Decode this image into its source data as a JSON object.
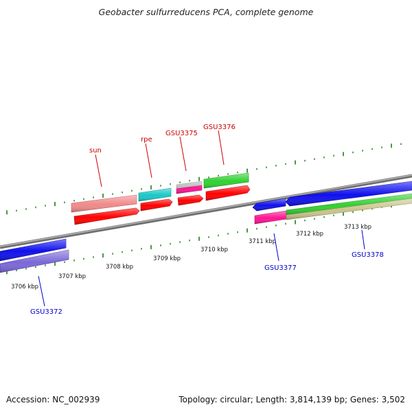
{
  "title": "Geobacter sulfurreducens PCA, complete genome",
  "footer": {
    "accession": "Accession: NC_002939",
    "topology": "Topology: circular; Length: 3,814,139 bp; Genes: 3,502"
  },
  "colors": {
    "backbone": "#8e8e8e",
    "ticks": "#1a7d1a",
    "forward_label": "#cc0000",
    "reverse_label": "#0000cc"
  },
  "scale_labels": [
    "3706 kbp",
    "3707 kbp",
    "3708 kbp",
    "3709 kbp",
    "3710 kbp",
    "3711 kbp",
    "3712 kbp",
    "3713 kbp"
  ],
  "gene_labels": {
    "sun": "sun",
    "rpe": "rpe",
    "GSU3375": "GSU3375",
    "GSU3376": "GSU3376",
    "GSU3372": "GSU3372",
    "GSU3377": "GSU3377",
    "GSU3378": "GSU3378"
  }
}
